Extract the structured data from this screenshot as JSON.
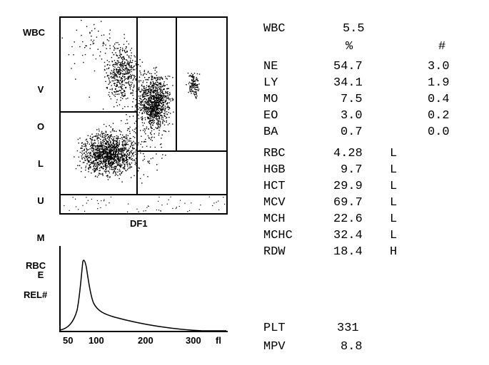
{
  "scatter": {
    "y_label": "WBC",
    "volume_letters": [
      "V",
      "O",
      "L",
      "U",
      "M",
      "E"
    ],
    "x_label": "DF1"
  },
  "histogram": {
    "label_top": "RBC",
    "label_mid": "REL#",
    "ticks": [
      "50",
      "100",
      "200",
      "300",
      "fl"
    ]
  },
  "results": {
    "wbc": {
      "name": "WBC",
      "value": "5.5"
    },
    "pct_header": "%",
    "abs_header": "#",
    "diff": [
      {
        "name": "NE",
        "pct": "54.7",
        "abs": "3.0"
      },
      {
        "name": "LY",
        "pct": "34.1",
        "abs": "1.9"
      },
      {
        "name": "MO",
        "pct": "7.5",
        "abs": "0.4"
      },
      {
        "name": "EO",
        "pct": "3.0",
        "abs": "0.2"
      },
      {
        "name": "BA",
        "pct": "0.7",
        "abs": "0.0"
      }
    ],
    "rbc": [
      {
        "name": "RBC",
        "value": "4.28",
        "flag": "L"
      },
      {
        "name": "HGB",
        "value": "9.7",
        "flag": "L"
      },
      {
        "name": "HCT",
        "value": "29.9",
        "flag": "L"
      },
      {
        "name": "MCV",
        "value": "69.7",
        "flag": "L"
      },
      {
        "name": "MCH",
        "value": "22.6",
        "flag": "L"
      },
      {
        "name": "MCHC",
        "value": "32.4",
        "flag": "L"
      },
      {
        "name": "RDW",
        "value": "18.4",
        "flag": "H"
      }
    ],
    "plt": [
      {
        "name": "PLT",
        "value": "331"
      },
      {
        "name": "MPV",
        "value": "8.8"
      }
    ]
  }
}
